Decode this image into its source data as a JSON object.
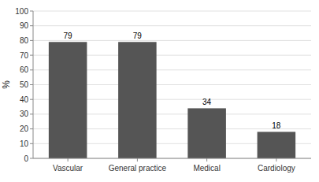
{
  "chart_data": {
    "type": "bar",
    "ylabel": "%",
    "categories": [
      "Vascular",
      "General practice",
      "Medical",
      "Cardiology"
    ],
    "values": [
      79,
      79,
      34,
      18
    ],
    "color": "#555555",
    "ylim": [
      0,
      100
    ],
    "yticks": [
      0,
      10,
      20,
      30,
      40,
      50,
      60,
      70,
      80,
      90,
      100
    ],
    "grid": true,
    "data_labels": true
  }
}
